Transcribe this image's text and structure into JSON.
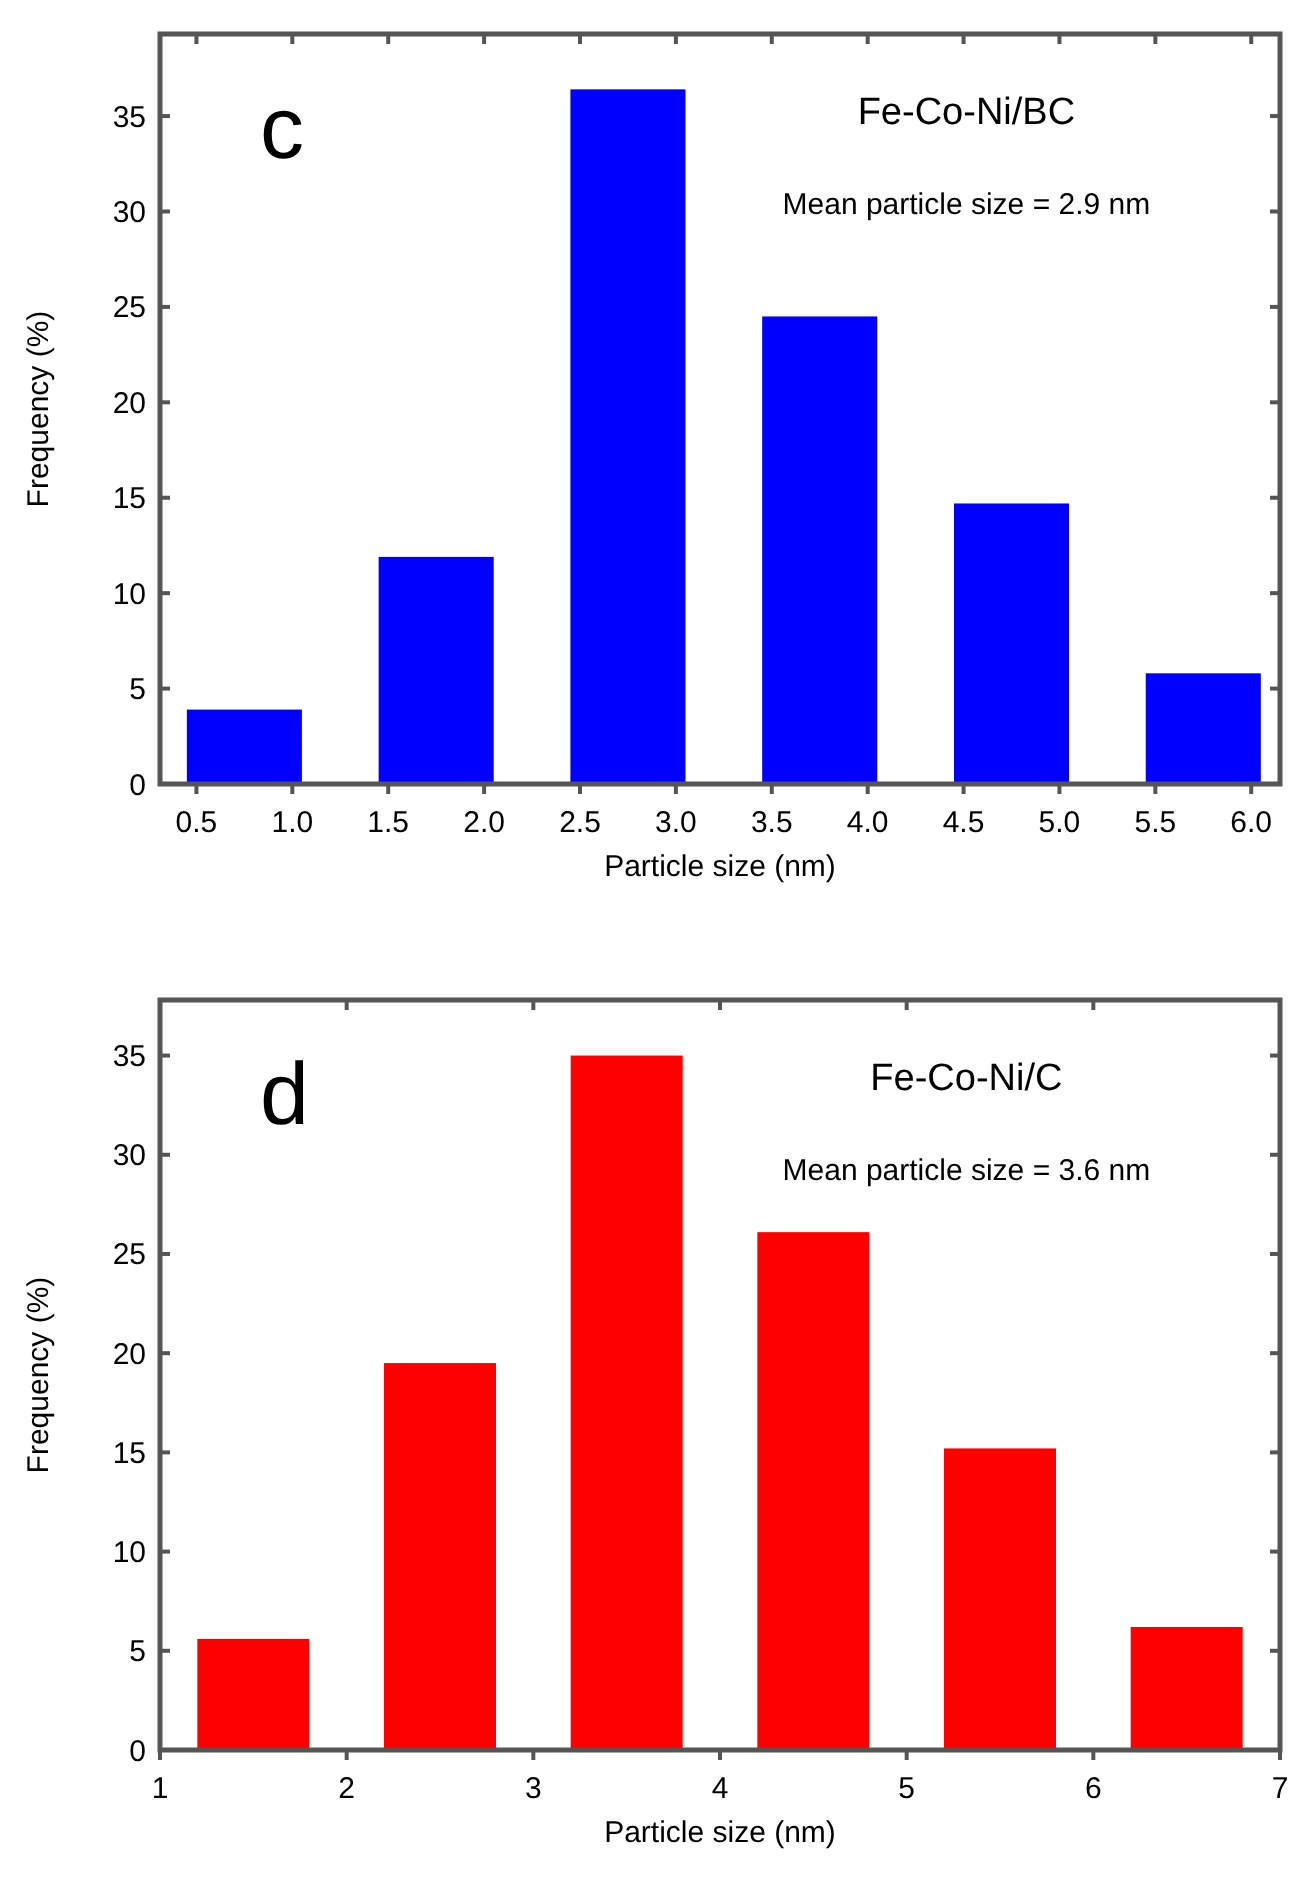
{
  "chart_data": [
    {
      "type": "bar",
      "title": "c",
      "xlabel": "Particle size (nm)",
      "ylabel": "Frequency (%)",
      "annotations": [
        "Fe-Co-Ni/BC",
        "Mean particle size = 2.9 nm"
      ],
      "x": [
        0.75,
        1.75,
        2.75,
        3.75,
        4.75,
        5.75
      ],
      "series": [
        {
          "color": "#0000ff",
          "values": [
            3.9,
            11.9,
            36.4,
            24.5,
            14.7,
            5.8
          ]
        }
      ],
      "xlim": [
        0.31,
        6.15
      ],
      "ylim": [
        0,
        39.3
      ],
      "xticks": [
        0.5,
        {
          "value": 1,
          "label": "1.0"
        },
        1.5,
        {
          "value": 2,
          "label": "2.0"
        },
        2.5,
        {
          "value": 3,
          "label": "3.0"
        },
        3.5,
        {
          "value": 4,
          "label": "4.0"
        },
        4.5,
        {
          "value": 5,
          "label": "5.0"
        },
        5.5,
        {
          "value": 6,
          "label": "6.0"
        }
      ],
      "yticks": [
        0,
        5,
        10,
        15,
        20,
        25,
        30,
        35
      ],
      "grid": false
    },
    {
      "type": "bar",
      "title": "d",
      "xlabel": "Particle size (nm)",
      "ylabel": "Frequency (%)",
      "annotations": [
        "Fe-Co-Ni/C",
        "Mean particle size = 3.6 nm"
      ],
      "x": [
        1.5,
        2.5,
        3.5,
        4.5,
        5.5,
        6.5
      ],
      "series": [
        {
          "color": "#ff0000",
          "values": [
            5.6,
            19.5,
            35.0,
            26.1,
            15.2,
            6.2
          ]
        }
      ],
      "xlim": [
        1,
        7
      ],
      "ylim": [
        0,
        37.8
      ],
      "xticks": [
        1,
        2,
        3,
        4,
        5,
        6,
        7
      ],
      "yticks": [
        0,
        5,
        10,
        15,
        20,
        25,
        30,
        35
      ],
      "grid": false
    }
  ]
}
